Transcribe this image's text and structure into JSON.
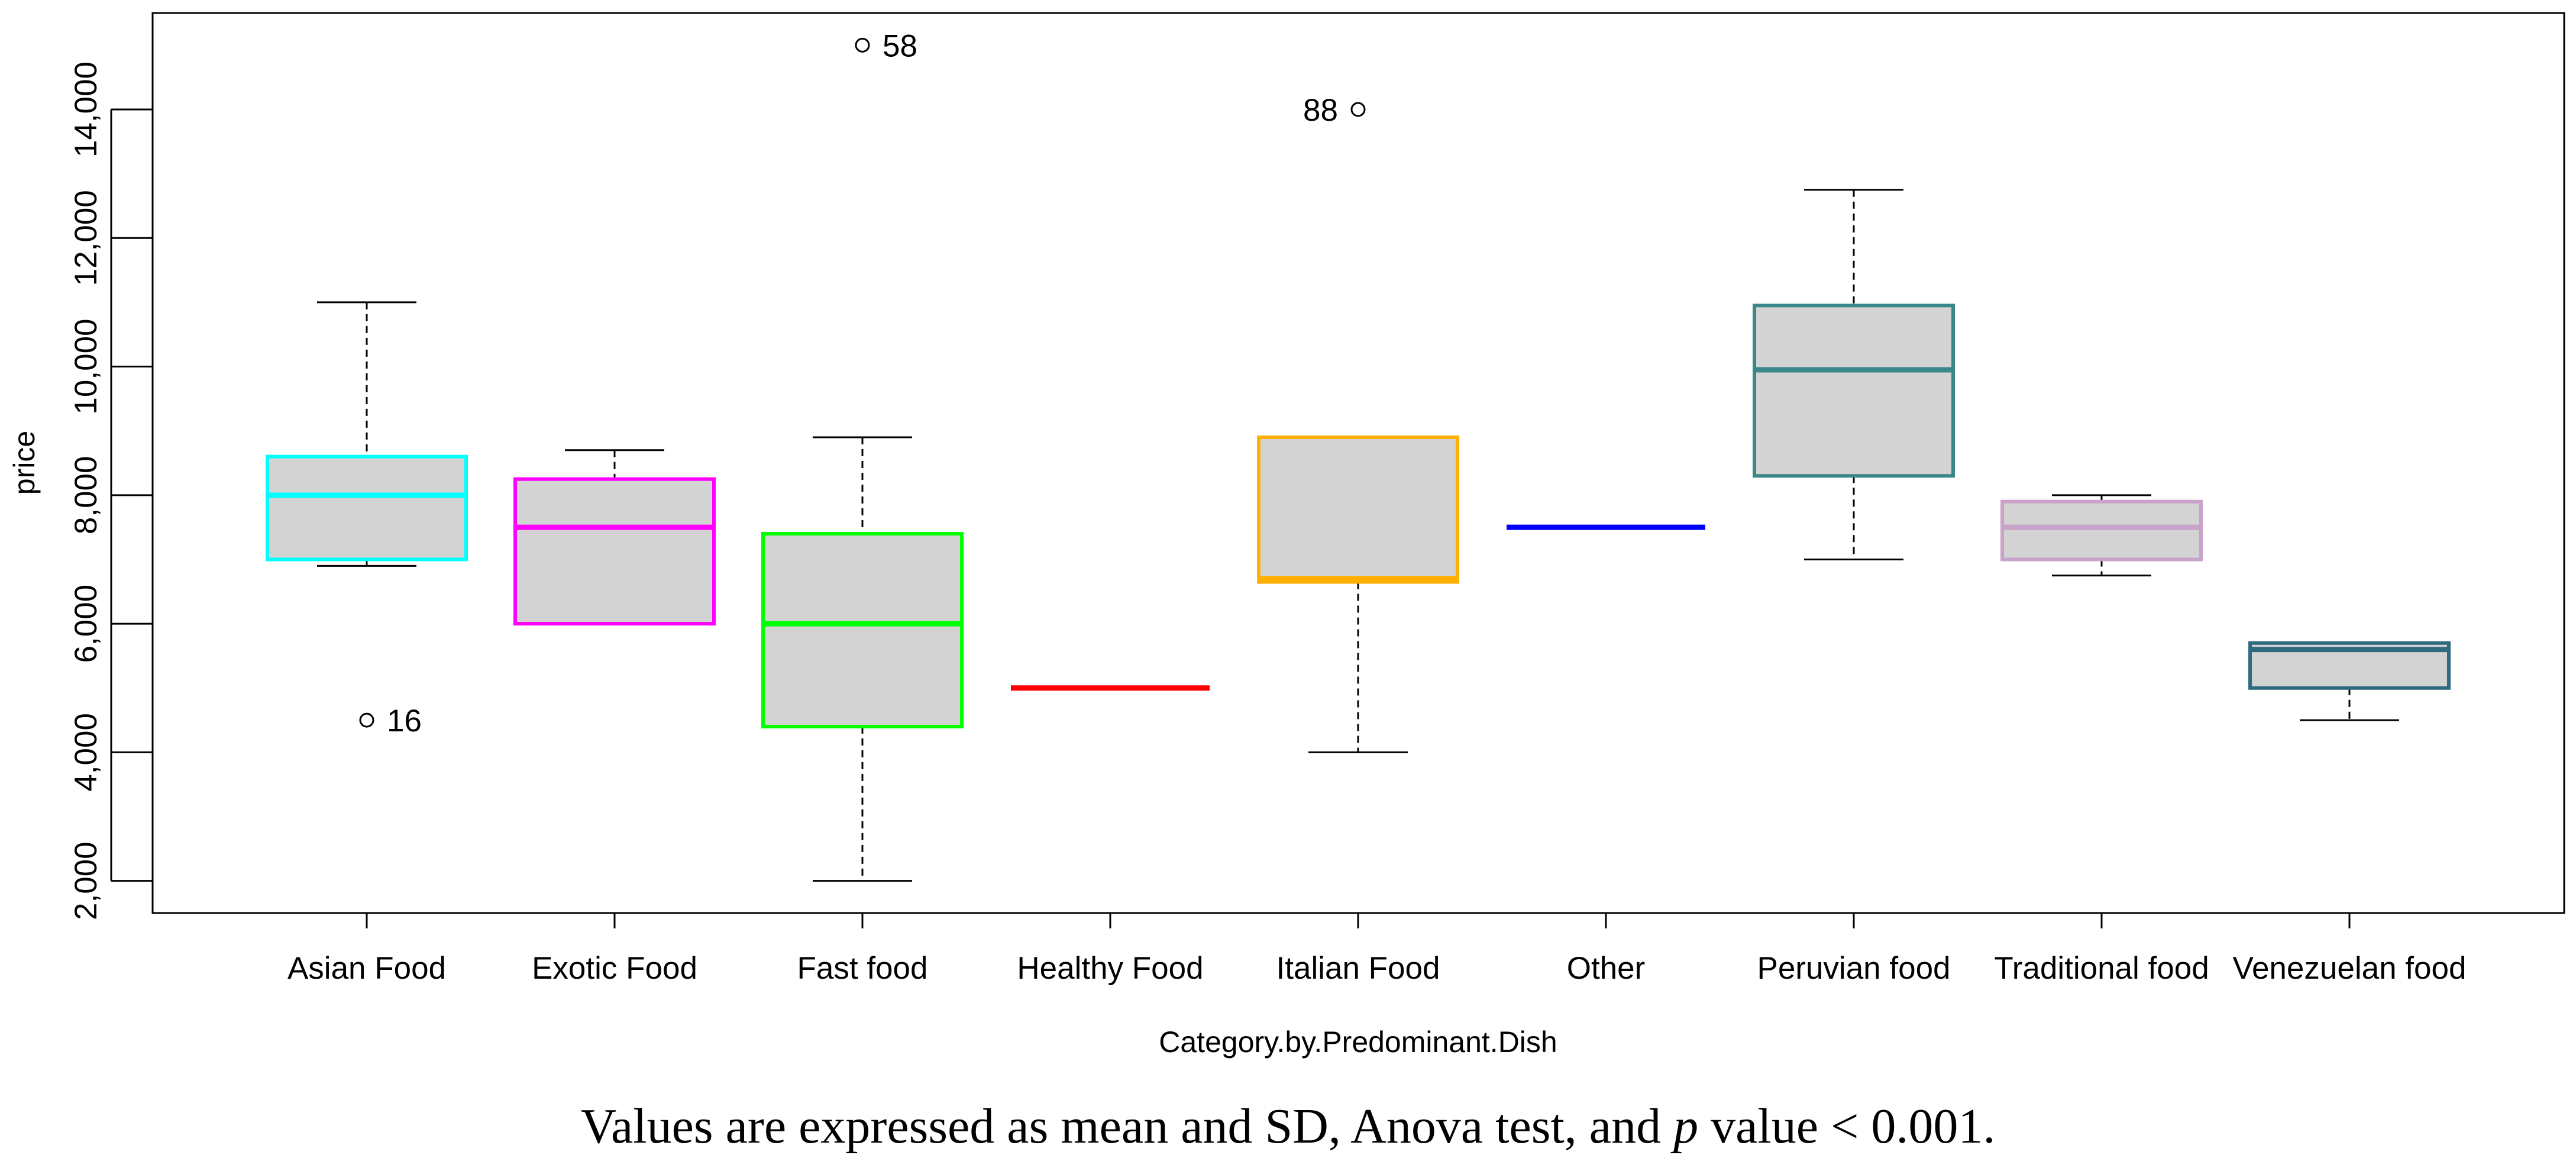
{
  "chart_data": {
    "type": "boxplot",
    "xlabel": "Category.by.Predominant.Dish",
    "ylabel": "price",
    "ylim": [
      1500,
      15500
    ],
    "yticks": [
      2000,
      4000,
      6000,
      8000,
      10000,
      12000,
      14000
    ],
    "ytick_labels": [
      "2,000",
      "4,000",
      "6,000",
      "8,000",
      "10,000",
      "12,000",
      "14,000"
    ],
    "grid": false,
    "series": [
      {
        "category": "Asian Food",
        "color": "#00FFFF",
        "whisker_low": 6900,
        "q1": 7000,
        "median": 8000,
        "q3": 8600,
        "whisker_high": 11000,
        "outliers": [
          {
            "value": 4500,
            "label": "16"
          }
        ]
      },
      {
        "category": "Exotic Food",
        "color": "#FF00FF",
        "whisker_low": 6000,
        "q1": 6000,
        "median": 7500,
        "q3": 8250,
        "whisker_high": 8700,
        "outliers": []
      },
      {
        "category": "Fast food",
        "color": "#00FF00",
        "whisker_low": 2000,
        "q1": 4400,
        "median": 6000,
        "q3": 7400,
        "whisker_high": 8900,
        "outliers": [
          {
            "value": 15000,
            "label": "58"
          }
        ]
      },
      {
        "category": "Healthy Food",
        "color": "#FF0000",
        "whisker_low": 5000,
        "q1": 5000,
        "median": 5000,
        "q3": 5000,
        "whisker_high": 5000,
        "outliers": []
      },
      {
        "category": "Italian Food",
        "color": "#FFB000",
        "whisker_low": 4000,
        "q1": 6650,
        "median": 6700,
        "q3": 8900,
        "whisker_high": 8900,
        "outliers": [
          {
            "value": 14000,
            "label": "88"
          }
        ]
      },
      {
        "category": "Other",
        "color": "#0000FF",
        "whisker_low": 7500,
        "q1": 7500,
        "median": 7500,
        "q3": 7500,
        "whisker_high": 7500,
        "outliers": []
      },
      {
        "category": "Peruvian food",
        "color": "#3B8686",
        "whisker_low": 7000,
        "q1": 8300,
        "median": 9950,
        "q3": 10950,
        "whisker_high": 12750,
        "outliers": []
      },
      {
        "category": "Traditional food",
        "color": "#C8A2C8",
        "whisker_low": 6750,
        "q1": 7000,
        "median": 7500,
        "q3": 7900,
        "whisker_high": 8000,
        "outliers": []
      },
      {
        "category": "Venezuelan food",
        "color": "#2F6B80",
        "whisker_low": 4500,
        "q1": 5000,
        "median": 5600,
        "q3": 5700,
        "whisker_high": 5700,
        "outliers": []
      }
    ]
  },
  "caption": {
    "before": "Values are expressed as mean and SD, Anova test, and ",
    "p": "p",
    "after": " value < 0.001."
  }
}
